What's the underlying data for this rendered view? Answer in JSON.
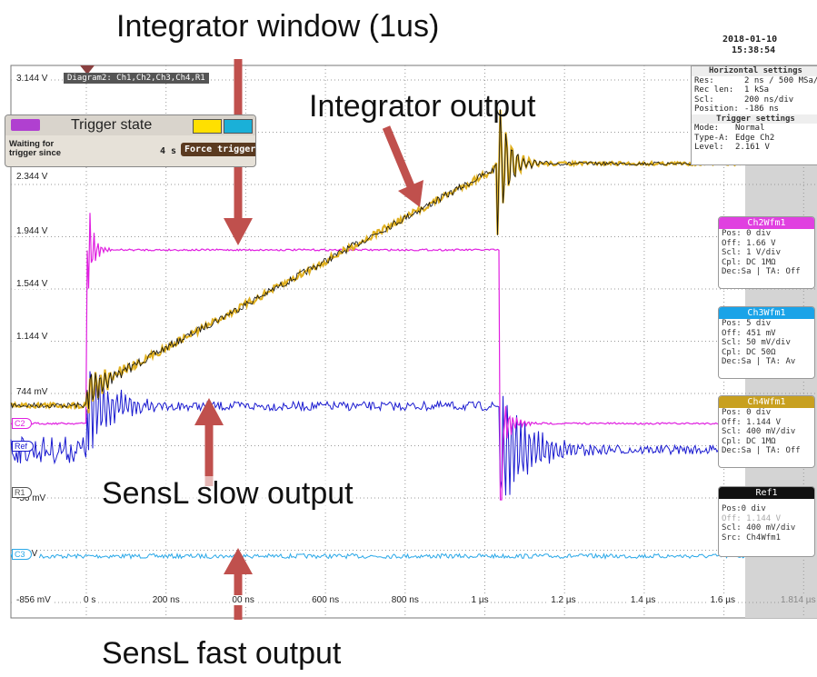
{
  "annotations": {
    "window": "Integrator  window (1us)",
    "integrator": "Integrator output",
    "slow": "SensL slow output",
    "fast": "SensL fast output"
  },
  "scope": {
    "diagram": "Diagram2: Ch1,Ch2,Ch3,Ch4,R1",
    "date": "2018-01-10",
    "time": "15:38:54",
    "y_labels": [
      "3.144 V",
      "2.344 V",
      "1.944 V",
      "1.544 V",
      "1.144 V",
      "744 mV",
      "-56 mV",
      "5 mV",
      "-856 mV"
    ],
    "x_labels": [
      "0 s",
      "200 ns",
      "00 ns",
      "600 ns",
      "800 ns",
      "1 µs",
      "1.2 µs",
      "1.4 µs",
      "1.6 µs",
      "1.814 µs"
    ],
    "markers": [
      "C2",
      "Ref",
      "R1",
      "C3"
    ]
  },
  "trigger_state": {
    "title": "Trigger state",
    "status": "Waiting for trigger since",
    "elapsed": "4 s",
    "button": "Force trigger"
  },
  "horizontal": {
    "title": "Horizontal settings",
    "rows": [
      [
        "Res:",
        "2 ns / 500 MSa/s"
      ],
      [
        "Rec len:",
        "1 kSa"
      ],
      [
        "Scl:",
        "200 ns/div"
      ],
      [
        "Position:",
        "-186 ns"
      ]
    ]
  },
  "trigger_settings": {
    "title": "Trigger settings",
    "rows": [
      [
        "Mode:",
        "Normal"
      ],
      [
        "Type-A:",
        "Edge Ch2"
      ],
      [
        "Level:",
        "2.161 V"
      ]
    ]
  },
  "channels": [
    {
      "name": "Ch2Wfm1",
      "lines": [
        "Pos: 0 div",
        "Off: 1.66 V",
        "Scl: 1 V/div",
        "Cpl: DC 1MΩ",
        "Dec:Sa | TA: Off"
      ]
    },
    {
      "name": "Ch3Wfm1",
      "lines": [
        "Pos: 5 div",
        "Off: 451 mV",
        "Scl: 50 mV/div",
        "Cpl: DC 50Ω",
        "Dec:Sa | TA: Av"
      ]
    },
    {
      "name": "Ch4Wfm1",
      "lines": [
        "Pos: 0 div",
        "Off: 1.144 V",
        "Scl: 400 mV/div",
        "Cpl: DC 1MΩ",
        "Dec:Sa | TA: Off"
      ]
    },
    {
      "name": "Ref1",
      "lines": [
        "Pos:0 div",
        "Off: 1.144 V",
        "Scl: 400 mV/div",
        "Src: Ch4Wfm1"
      ]
    }
  ]
}
